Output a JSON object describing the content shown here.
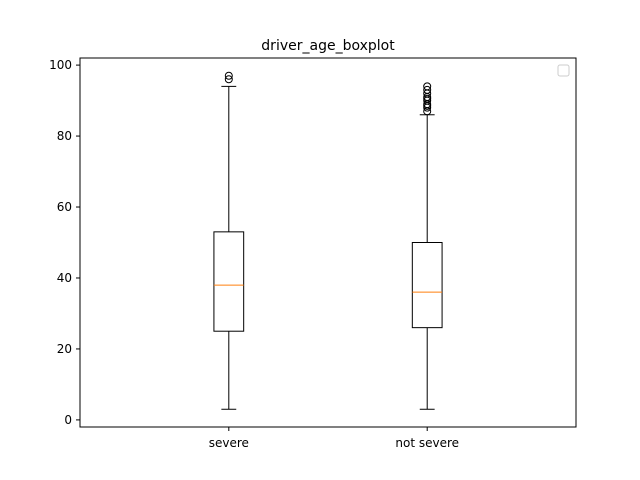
{
  "chart_data": {
    "type": "boxplot",
    "title": "driver_age_boxplot",
    "xlabel": "",
    "ylabel": "",
    "categories": [
      "severe",
      "not severe"
    ],
    "ylim": [
      -2,
      102
    ],
    "yticks": [
      0,
      20,
      40,
      60,
      80,
      100
    ],
    "grid": false,
    "legend": "top-right (empty)",
    "boxes": [
      {
        "category": "severe",
        "whisker_low": 3,
        "q1": 25,
        "median": 38,
        "q3": 53,
        "whisker_high": 94,
        "outliers": [
          96,
          97
        ]
      },
      {
        "category": "not severe",
        "whisker_low": 3,
        "q1": 26,
        "median": 36,
        "q3": 50,
        "whisker_high": 86,
        "outliers": [
          87,
          88,
          88.5,
          89,
          90,
          90.5,
          91,
          92,
          93,
          94
        ]
      }
    ],
    "colors": {
      "box": "#000000",
      "median": "#ff7f0e",
      "outlier": "#000000"
    }
  }
}
